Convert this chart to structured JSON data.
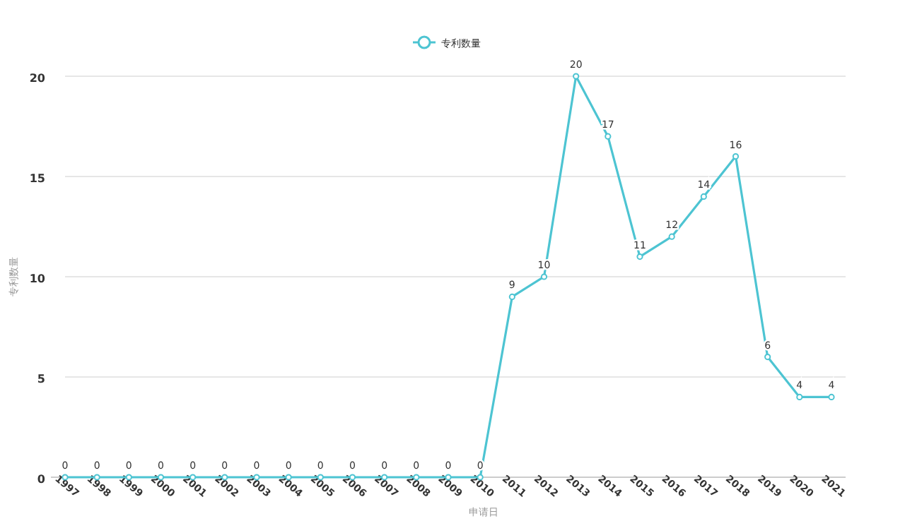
{
  "chart_data": {
    "type": "line",
    "xlabel": "申请日",
    "ylabel": "专利数量",
    "categories": [
      "1997",
      "1998",
      "1999",
      "2000",
      "2001",
      "2002",
      "2003",
      "2004",
      "2005",
      "2006",
      "2007",
      "2008",
      "2009",
      "2010",
      "2011",
      "2012",
      "2013",
      "2014",
      "2015",
      "2016",
      "2017",
      "2018",
      "2019",
      "2020",
      "2021"
    ],
    "series": [
      {
        "name": "专利数量",
        "color": "#4dc4d2",
        "values": [
          0,
          0,
          0,
          0,
          0,
          0,
          0,
          0,
          0,
          0,
          0,
          0,
          0,
          0,
          9,
          10,
          20,
          17,
          11,
          12,
          14,
          16,
          6,
          4,
          4
        ]
      }
    ],
    "ylim": [
      0,
      20
    ],
    "yticks": [
      0,
      5,
      10,
      15,
      20
    ],
    "grid": "y",
    "legend": "top",
    "data_labels": true,
    "marker": "circle"
  }
}
